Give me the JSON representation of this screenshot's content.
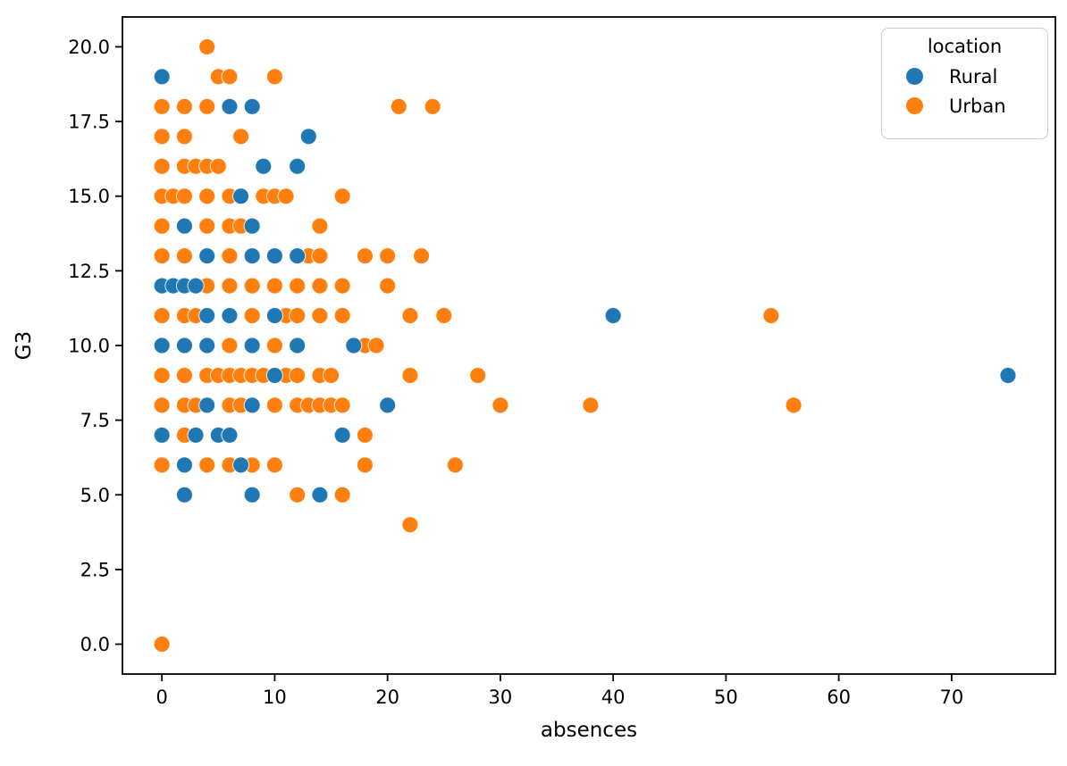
{
  "chart_data": {
    "type": "scatter",
    "title": "",
    "xlabel": "absences",
    "ylabel": "G3",
    "xlim": [
      -3.5,
      79.2
    ],
    "ylim": [
      -1.0,
      21.0
    ],
    "grid": false,
    "marker_radius": 9,
    "xticks": [
      {
        "value": 0,
        "label": "0"
      },
      {
        "value": 10,
        "label": "10"
      },
      {
        "value": 20,
        "label": "20"
      },
      {
        "value": 30,
        "label": "30"
      },
      {
        "value": 40,
        "label": "40"
      },
      {
        "value": 50,
        "label": "50"
      },
      {
        "value": 60,
        "label": "60"
      },
      {
        "value": 70,
        "label": "70"
      }
    ],
    "yticks": [
      {
        "value": 0,
        "label": "0.0"
      },
      {
        "value": 2.5,
        "label": "2.5"
      },
      {
        "value": 5,
        "label": "5.0"
      },
      {
        "value": 7.5,
        "label": "7.5"
      },
      {
        "value": 10,
        "label": "10.0"
      },
      {
        "value": 12.5,
        "label": "12.5"
      },
      {
        "value": 15,
        "label": "15.0"
      },
      {
        "value": 17.5,
        "label": "17.5"
      },
      {
        "value": 20,
        "label": "20.0"
      }
    ],
    "legend": {
      "title": "location",
      "position": "upper right",
      "entries": [
        {
          "label": "Rural",
          "color": "#1f77b4"
        },
        {
          "label": "Urban",
          "color": "#ff7f0e"
        }
      ]
    },
    "series": [
      {
        "name": "Urban",
        "color": "#ff7f0e",
        "points": [
          [
            0,
            0
          ],
          [
            22,
            4
          ],
          [
            12,
            5
          ],
          [
            16,
            5
          ],
          [
            0,
            6
          ],
          [
            4,
            6
          ],
          [
            6,
            6
          ],
          [
            8,
            6
          ],
          [
            10,
            6
          ],
          [
            18,
            6
          ],
          [
            26,
            6
          ],
          [
            2,
            7
          ],
          [
            18,
            7
          ],
          [
            0,
            8
          ],
          [
            2,
            8
          ],
          [
            3,
            8
          ],
          [
            6,
            8
          ],
          [
            7,
            8
          ],
          [
            10,
            8
          ],
          [
            12,
            8
          ],
          [
            13,
            8
          ],
          [
            14,
            8
          ],
          [
            15,
            8
          ],
          [
            16,
            8
          ],
          [
            30,
            8
          ],
          [
            38,
            8
          ],
          [
            56,
            8
          ],
          [
            0,
            9
          ],
          [
            2,
            9
          ],
          [
            4,
            9
          ],
          [
            5,
            9
          ],
          [
            6,
            9
          ],
          [
            7,
            9
          ],
          [
            8,
            9
          ],
          [
            9,
            9
          ],
          [
            11,
            9
          ],
          [
            12,
            9
          ],
          [
            14,
            9
          ],
          [
            15,
            9
          ],
          [
            22,
            9
          ],
          [
            28,
            9
          ],
          [
            6,
            10
          ],
          [
            10,
            10
          ],
          [
            18,
            10
          ],
          [
            19,
            10
          ],
          [
            0,
            11
          ],
          [
            2,
            11
          ],
          [
            3,
            11
          ],
          [
            8,
            11
          ],
          [
            11,
            11
          ],
          [
            12,
            11
          ],
          [
            14,
            11
          ],
          [
            16,
            11
          ],
          [
            22,
            11
          ],
          [
            25,
            11
          ],
          [
            54,
            11
          ],
          [
            4,
            12
          ],
          [
            6,
            12
          ],
          [
            8,
            12
          ],
          [
            10,
            12
          ],
          [
            12,
            12
          ],
          [
            14,
            12
          ],
          [
            16,
            12
          ],
          [
            20,
            12
          ],
          [
            0,
            13
          ],
          [
            2,
            13
          ],
          [
            6,
            13
          ],
          [
            13,
            13
          ],
          [
            14,
            13
          ],
          [
            18,
            13
          ],
          [
            20,
            13
          ],
          [
            23,
            13
          ],
          [
            0,
            14
          ],
          [
            4,
            14
          ],
          [
            6,
            14
          ],
          [
            7,
            14
          ],
          [
            14,
            14
          ],
          [
            0,
            15
          ],
          [
            1,
            15
          ],
          [
            2,
            15
          ],
          [
            4,
            15
          ],
          [
            6,
            15
          ],
          [
            9,
            15
          ],
          [
            10,
            15
          ],
          [
            11,
            15
          ],
          [
            16,
            15
          ],
          [
            0,
            16
          ],
          [
            2,
            16
          ],
          [
            3,
            16
          ],
          [
            4,
            16
          ],
          [
            5,
            16
          ],
          [
            0,
            17
          ],
          [
            2,
            17
          ],
          [
            7,
            17
          ],
          [
            0,
            18
          ],
          [
            2,
            18
          ],
          [
            4,
            18
          ],
          [
            21,
            18
          ],
          [
            24,
            18
          ],
          [
            5,
            19
          ],
          [
            6,
            19
          ],
          [
            10,
            19
          ],
          [
            4,
            20
          ]
        ]
      },
      {
        "name": "Rural",
        "color": "#1f77b4",
        "points": [
          [
            2,
            5
          ],
          [
            8,
            5
          ],
          [
            14,
            5
          ],
          [
            2,
            6
          ],
          [
            7,
            6
          ],
          [
            0,
            7
          ],
          [
            3,
            7
          ],
          [
            5,
            7
          ],
          [
            6,
            7
          ],
          [
            16,
            7
          ],
          [
            4,
            8
          ],
          [
            8,
            8
          ],
          [
            20,
            8
          ],
          [
            10,
            9
          ],
          [
            75,
            9
          ],
          [
            0,
            10
          ],
          [
            2,
            10
          ],
          [
            4,
            10
          ],
          [
            8,
            10
          ],
          [
            12,
            10
          ],
          [
            17,
            10
          ],
          [
            4,
            11
          ],
          [
            6,
            11
          ],
          [
            10,
            11
          ],
          [
            40,
            11
          ],
          [
            0,
            12
          ],
          [
            1,
            12
          ],
          [
            2,
            12
          ],
          [
            3,
            12
          ],
          [
            4,
            13
          ],
          [
            8,
            13
          ],
          [
            10,
            13
          ],
          [
            12,
            13
          ],
          [
            2,
            14
          ],
          [
            8,
            14
          ],
          [
            7,
            15
          ],
          [
            9,
            16
          ],
          [
            12,
            16
          ],
          [
            13,
            17
          ],
          [
            6,
            18
          ],
          [
            8,
            18
          ],
          [
            0,
            19
          ]
        ]
      }
    ]
  }
}
